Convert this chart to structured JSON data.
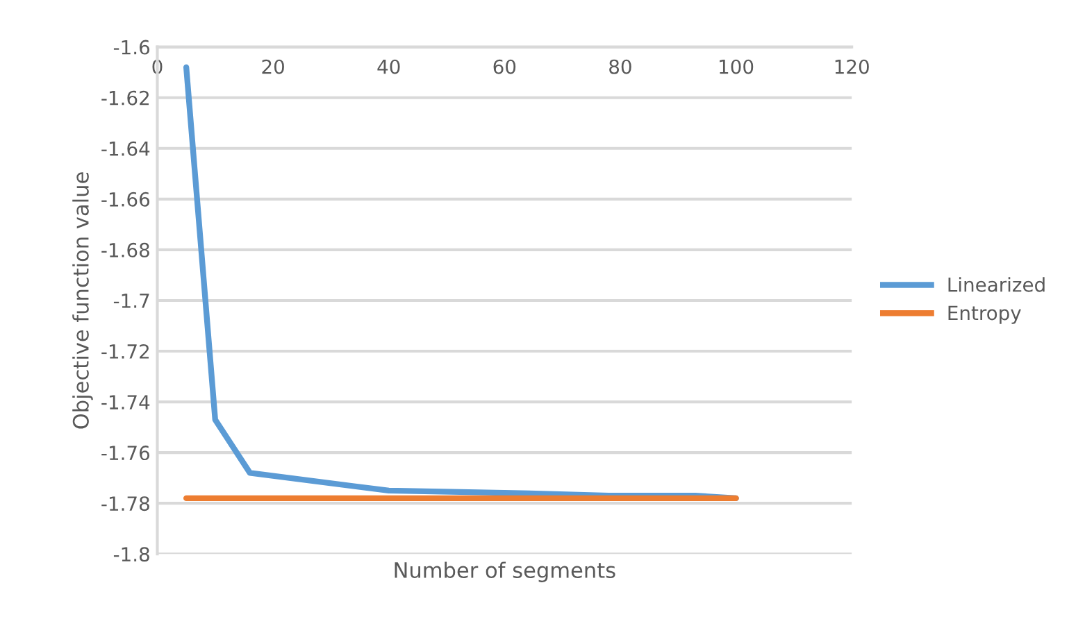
{
  "chart_data": {
    "type": "line",
    "xlabel": "Number of segments",
    "ylabel": "Objective function value",
    "series": [
      {
        "name": "Linearized",
        "color": "#5b9bd5",
        "x": [
          5,
          10,
          16,
          40,
          63,
          78,
          93,
          100
        ],
        "values": [
          -1.608,
          -1.747,
          -1.768,
          -1.775,
          -1.776,
          -1.777,
          -1.777,
          -1.778
        ]
      },
      {
        "name": "Entropy",
        "color": "#ed7d31",
        "x": [
          5,
          100
        ],
        "values": [
          -1.778,
          -1.778
        ]
      }
    ],
    "xlim": [
      0,
      120
    ],
    "xticks": [
      0,
      20,
      40,
      60,
      80,
      100,
      120
    ],
    "ylim": [
      -1.8,
      -1.6
    ],
    "yticks": [
      -1.8,
      -1.78,
      -1.76,
      -1.74,
      -1.72,
      -1.7,
      -1.68,
      -1.66,
      -1.64,
      -1.62,
      -1.6
    ],
    "grid": "y",
    "legend": "right",
    "marker": "none",
    "line_style": "solid"
  }
}
